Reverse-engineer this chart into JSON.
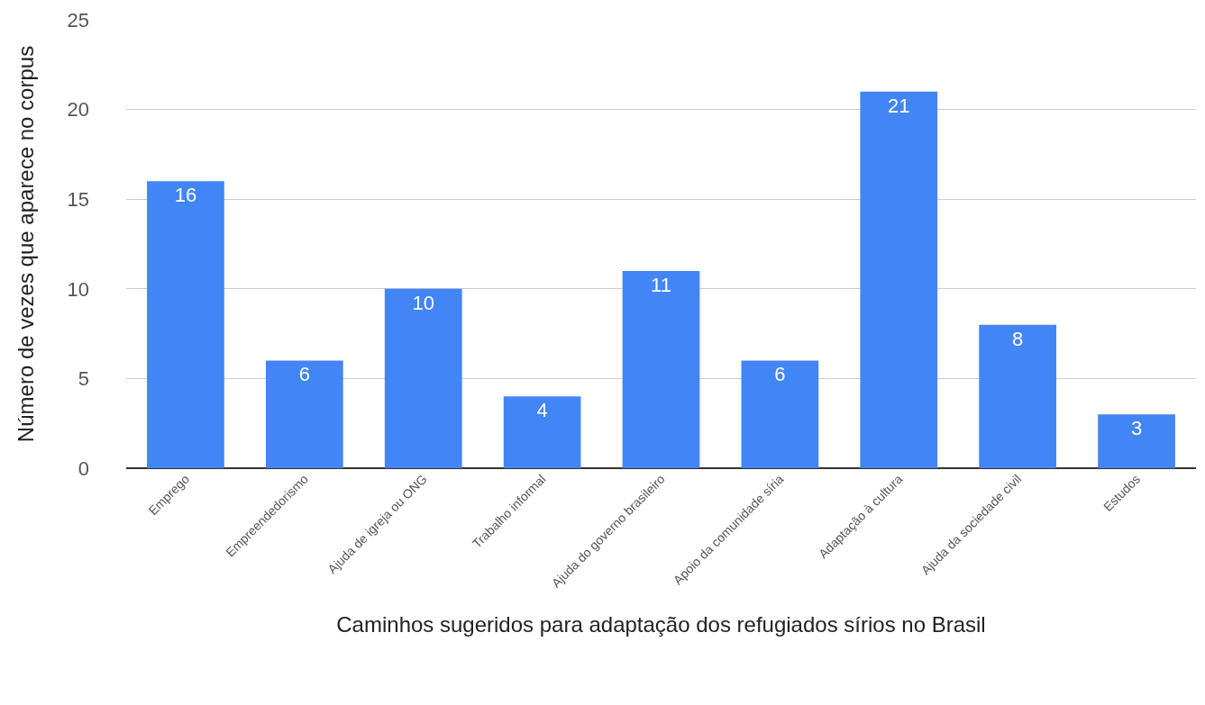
{
  "chart_data": {
    "type": "bar",
    "xlabel": "Caminhos sugeridos para adaptação dos refugiados sírios no Brasil",
    "ylabel": "Número de vezes que aparece no corpus",
    "categories": [
      "Emprego",
      "Empreendedorismo",
      "Ajuda de igreja ou ONG",
      "Trabalho informal",
      "Ajuda do governo brasileiro",
      "Apoio da comunidade síria",
      "Adaptação à cultura",
      "Ajuda da sociedade civil",
      "Estudos"
    ],
    "values": [
      16,
      6,
      10,
      4,
      11,
      6,
      21,
      8,
      3
    ],
    "color": "#4285f4",
    "ylim": [
      0,
      25
    ],
    "yticks": [
      0,
      5,
      10,
      15,
      20,
      25
    ],
    "grid": "y",
    "data_labels": true,
    "legend": false
  }
}
